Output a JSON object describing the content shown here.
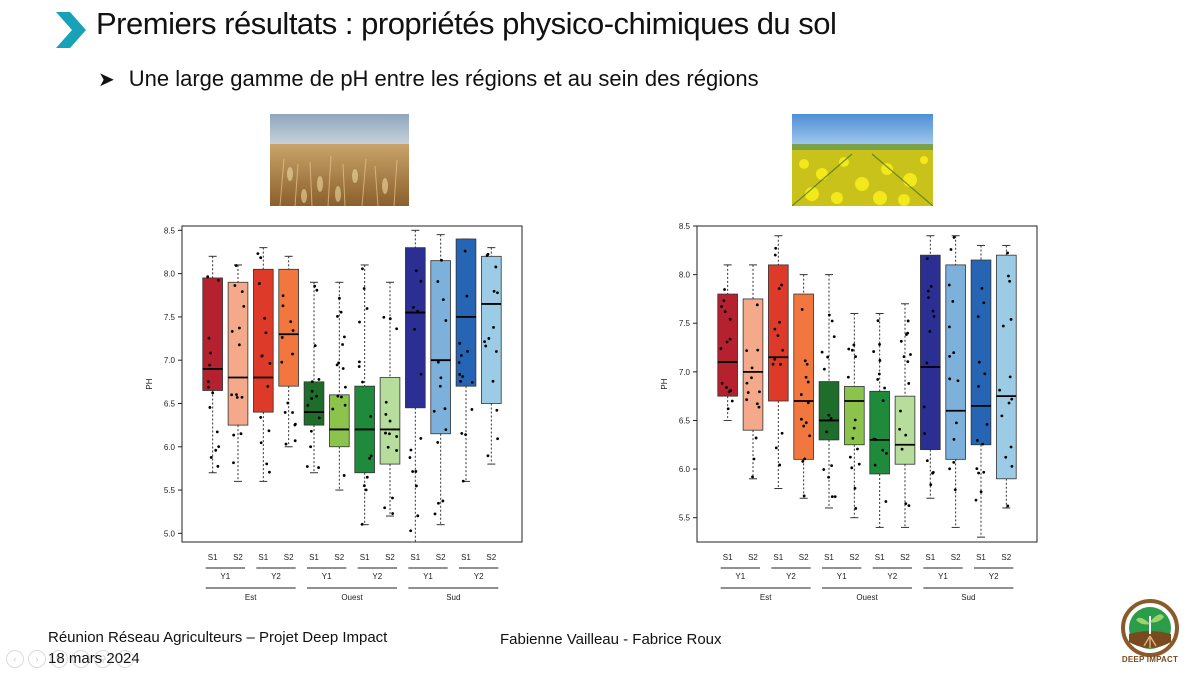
{
  "slide": {
    "title": "Premiers résultats : propriétés physico-chimiques du sol",
    "bullet": "Une large gamme de pH entre les régions et au sein des régions",
    "bullet_icon": "arrow-bullet-icon",
    "accent_color": "#17a2b8"
  },
  "images": {
    "left": "wheat-field-photo",
    "right": "rapeseed-field-photo"
  },
  "footer": {
    "line1": "Réunion Réseau Agriculteurs – Projet Deep Impact",
    "line2": "18 mars 2024",
    "authors": "Fabienne Vailleau  - Fabrice Roux",
    "logo_text": "DEEP IMPACT"
  },
  "chart_data": [
    {
      "type": "boxplot",
      "ylabel": "PH",
      "ylim": [
        4.9,
        8.55
      ],
      "yticks": [
        "5.0",
        "5.5",
        "6.0",
        "6.5",
        "7.0",
        "7.5",
        "8.0",
        "8.5"
      ],
      "sublabels": [
        "S1",
        "S2",
        "S1",
        "S2",
        "S1",
        "S2",
        "S1",
        "S2",
        "S1",
        "S2",
        "S1",
        "S2"
      ],
      "years": [
        "Y1",
        "Y2",
        "Y1",
        "Y2",
        "Y1",
        "Y2"
      ],
      "regions": [
        "Est",
        "Ouest",
        "Sud"
      ],
      "boxes": [
        {
          "color": "#b5212e",
          "q1": 6.65,
          "median": 6.9,
          "q3": 7.95,
          "min": 5.7,
          "max": 8.2
        },
        {
          "color": "#f4a98a",
          "q1": 6.25,
          "median": 6.8,
          "q3": 7.9,
          "min": 5.6,
          "max": 8.1
        },
        {
          "color": "#dd3a2a",
          "q1": 6.4,
          "median": 6.8,
          "q3": 8.05,
          "min": 5.6,
          "max": 8.3
        },
        {
          "color": "#f2773f",
          "q1": 6.7,
          "median": 7.3,
          "q3": 8.05,
          "min": 6.0,
          "max": 8.2
        },
        {
          "color": "#1e6d2b",
          "q1": 6.25,
          "median": 6.4,
          "q3": 6.75,
          "min": 5.7,
          "max": 7.9
        },
        {
          "color": "#8cc34d",
          "q1": 6.0,
          "median": 6.2,
          "q3": 6.6,
          "min": 5.5,
          "max": 7.9
        },
        {
          "color": "#1f8a3c",
          "q1": 5.7,
          "median": 6.2,
          "q3": 6.7,
          "min": 5.1,
          "max": 8.1
        },
        {
          "color": "#b6dd9c",
          "q1": 5.8,
          "median": 6.2,
          "q3": 6.8,
          "min": 5.2,
          "max": 7.9
        },
        {
          "color": "#2b2f94",
          "q1": 6.45,
          "median": 7.55,
          "q3": 8.3,
          "min": 4.9,
          "max": 8.5
        },
        {
          "color": "#7db0da",
          "q1": 6.15,
          "median": 7.0,
          "q3": 8.15,
          "min": 5.1,
          "max": 8.45
        },
        {
          "color": "#2565b3",
          "q1": 6.7,
          "median": 7.5,
          "q3": 8.4,
          "min": 5.6,
          "max": 8.4
        },
        {
          "color": "#9ccbe6",
          "q1": 6.5,
          "median": 7.65,
          "q3": 8.2,
          "min": 5.8,
          "max": 8.3
        }
      ]
    },
    {
      "type": "boxplot",
      "ylabel": "PH",
      "ylim": [
        5.25,
        8.5
      ],
      "yticks": [
        "5.5",
        "6.0",
        "6.5",
        "7.0",
        "7.5",
        "8.0",
        "8.5"
      ],
      "sublabels": [
        "S1",
        "S2",
        "S1",
        "S2",
        "S1",
        "S2",
        "S1",
        "S2",
        "S1",
        "S2",
        "S1",
        "S2"
      ],
      "years": [
        "Y1",
        "Y2",
        "Y1",
        "Y2",
        "Y1",
        "Y2"
      ],
      "regions": [
        "Est",
        "Ouest",
        "Sud"
      ],
      "boxes": [
        {
          "color": "#b5212e",
          "q1": 6.75,
          "median": 7.1,
          "q3": 7.8,
          "min": 6.5,
          "max": 8.1
        },
        {
          "color": "#f4a98a",
          "q1": 6.4,
          "median": 7.0,
          "q3": 7.75,
          "min": 5.9,
          "max": 8.1
        },
        {
          "color": "#dd3a2a",
          "q1": 6.7,
          "median": 7.15,
          "q3": 8.1,
          "min": 5.8,
          "max": 8.4
        },
        {
          "color": "#f2773f",
          "q1": 6.1,
          "median": 6.7,
          "q3": 7.8,
          "min": 5.7,
          "max": 8.0
        },
        {
          "color": "#1e6d2b",
          "q1": 6.3,
          "median": 6.5,
          "q3": 6.9,
          "min": 5.6,
          "max": 8.0
        },
        {
          "color": "#8cc34d",
          "q1": 6.25,
          "median": 6.7,
          "q3": 6.85,
          "min": 5.5,
          "max": 7.6
        },
        {
          "color": "#1f8a3c",
          "q1": 5.95,
          "median": 6.3,
          "q3": 6.8,
          "min": 5.4,
          "max": 7.6
        },
        {
          "color": "#b6dd9c",
          "q1": 6.05,
          "median": 6.25,
          "q3": 6.75,
          "min": 5.4,
          "max": 7.7
        },
        {
          "color": "#2b2f94",
          "q1": 6.2,
          "median": 7.05,
          "q3": 8.2,
          "min": 5.7,
          "max": 8.4
        },
        {
          "color": "#7db0da",
          "q1": 6.1,
          "median": 6.6,
          "q3": 8.1,
          "min": 5.4,
          "max": 8.4
        },
        {
          "color": "#2565b3",
          "q1": 6.25,
          "median": 6.65,
          "q3": 8.15,
          "min": 5.3,
          "max": 8.3
        },
        {
          "color": "#9ccbe6",
          "q1": 5.9,
          "median": 6.75,
          "q3": 8.2,
          "min": 5.6,
          "max": 8.3
        }
      ]
    }
  ]
}
